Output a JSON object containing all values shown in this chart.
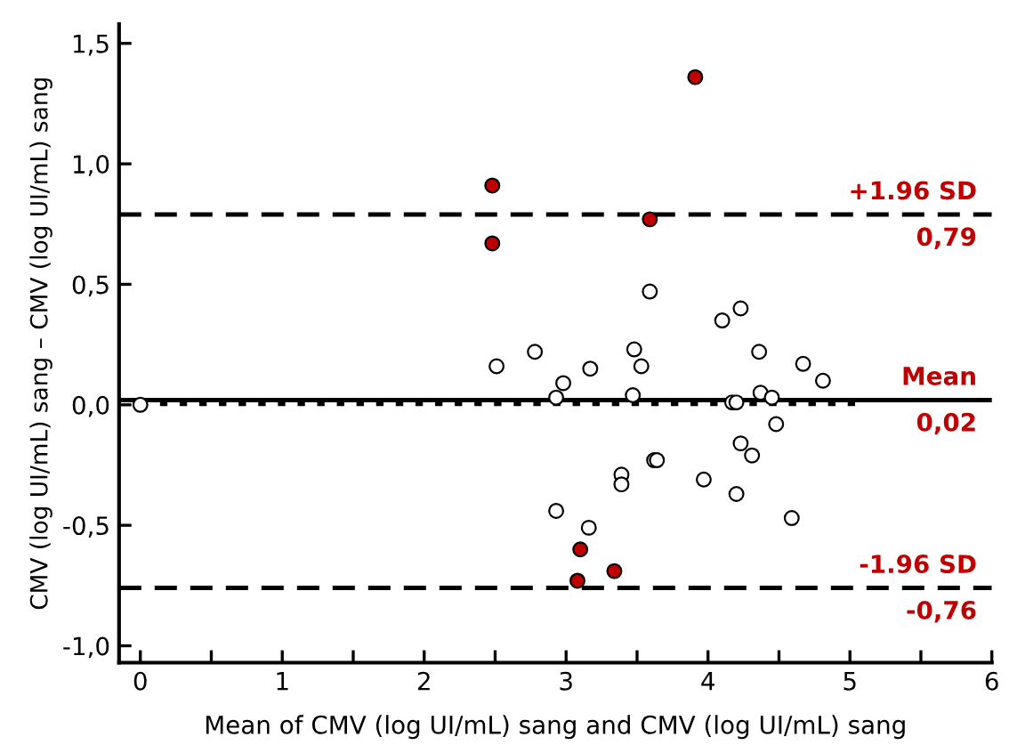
{
  "chart_data": {
    "type": "scatter",
    "xlabel": "Mean of CMV (log UI/mL) sang and CMV (log UI/mL) sang",
    "ylabel": "CMV (log UI/mL) sang – CMV (log UI/mL) sang",
    "xlim": [
      -0.15,
      6
    ],
    "ylim": [
      -1.07,
      1.58
    ],
    "xticks": [
      0,
      {
        "value": 0.5,
        "label": null
      },
      1,
      {
        "value": 1.5,
        "label": null
      },
      2,
      {
        "value": 2.5,
        "label": null
      },
      3,
      {
        "value": 3.5,
        "label": null
      },
      4,
      {
        "value": 4.5,
        "label": null
      },
      5,
      {
        "value": 5.5,
        "label": null
      },
      6
    ],
    "yticks": [
      {
        "value": -1.0,
        "label": "-1,0"
      },
      {
        "value": -0.5,
        "label": "-0,5"
      },
      {
        "value": 0.0,
        "label": "0,0"
      },
      {
        "value": 0.5,
        "label": "0,5"
      },
      {
        "value": 1.0,
        "label": "1,0"
      },
      {
        "value": 1.5,
        "label": "1,5"
      }
    ],
    "marker": "circle",
    "grid": false,
    "legend": false,
    "series": [
      {
        "color": "#ffffff",
        "x": [
          0,
          2.51,
          2.78,
          2.98,
          3.17,
          2.93,
          3.47,
          3.48,
          3.53,
          3.59,
          4.1,
          4.23,
          4.36,
          4.67,
          4.81,
          4.17,
          4.2,
          4.37,
          4.45,
          4.48,
          4.23,
          4.31,
          3.62,
          3.64,
          3.39,
          3.39,
          3.97,
          4.2,
          2.93,
          4.59,
          3.16
        ],
        "values": [
          0.0,
          0.16,
          0.22,
          0.09,
          0.15,
          0.03,
          0.04,
          0.23,
          0.16,
          0.47,
          0.35,
          0.4,
          0.22,
          0.17,
          0.1,
          0.01,
          0.01,
          0.05,
          0.03,
          -0.08,
          -0.16,
          -0.21,
          -0.23,
          -0.23,
          -0.29,
          -0.33,
          -0.31,
          -0.37,
          -0.44,
          -0.47,
          -0.51
        ]
      },
      {
        "color": "#c00000",
        "x": [
          2.48,
          2.48,
          3.91,
          3.59,
          3.1,
          3.34,
          3.08
        ],
        "values": [
          0.91,
          0.67,
          1.36,
          0.77,
          -0.6,
          -0.69,
          -0.73
        ]
      },
      {
        "type": "line",
        "color": "#000000",
        "line_style": "dotted",
        "marker": "none",
        "x": [
          0,
          5.11
        ],
        "values": [
          0.01,
          0.01
        ]
      }
    ],
    "ref_lines": [
      {
        "axis": "y",
        "value": 0.79,
        "label": "+1.96 SD",
        "line_style": "dashed",
        "color": "#000000"
      },
      {
        "axis": "y",
        "value": 0.02,
        "label": "Mean",
        "line_style": "solid",
        "color": "#000000"
      },
      {
        "axis": "y",
        "value": -0.76,
        "label": "-1.96 SD",
        "line_style": "dashed",
        "color": "#000000"
      }
    ],
    "annotations": [
      {
        "text": "0,79",
        "y": 0.79
      },
      {
        "text": "0,02",
        "y": 0.02
      },
      {
        "text": "-0,76",
        "y": -0.76
      }
    ]
  }
}
